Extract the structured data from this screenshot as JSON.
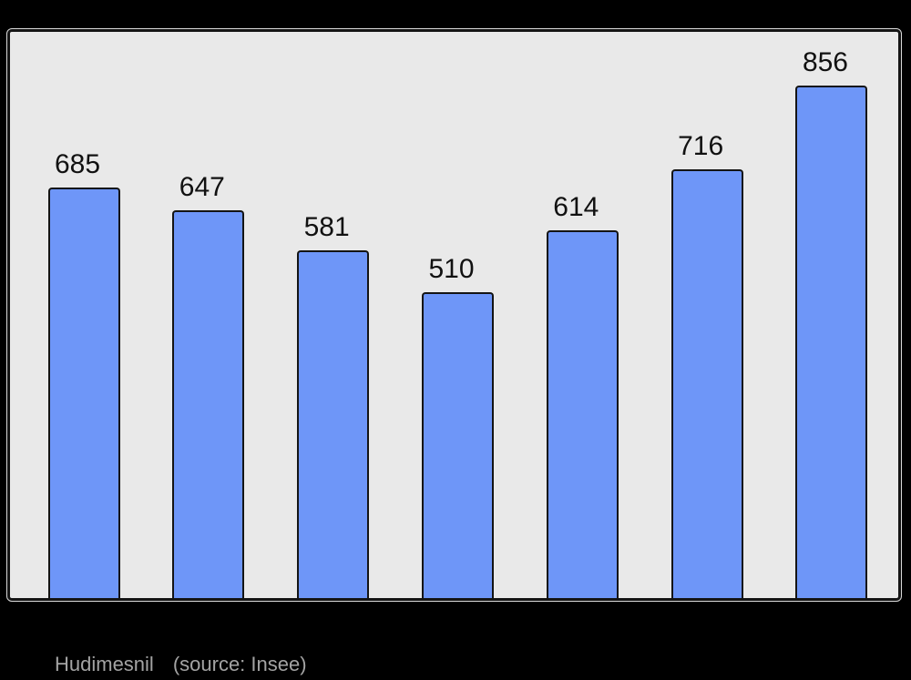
{
  "chart_data": {
    "type": "bar",
    "title": "Hudimesnil",
    "source_note": "(source: Insee)",
    "values": [
      685,
      647,
      581,
      510,
      614,
      716,
      856
    ],
    "data_labels": [
      "685",
      "647",
      "581",
      "510",
      "614",
      "716",
      "856"
    ],
    "xlabel": "",
    "ylabel": "",
    "ylim": [
      0,
      945
    ],
    "grid": false,
    "legend": false,
    "axis_tick_labels_visible": false
  },
  "colors": {
    "page_bg": "#000000",
    "plot_bg": "#e9e9e9",
    "plot_border": "#141414",
    "plot_outline": "#d9d9d9",
    "bar_fill": "#6e96f8",
    "bar_border": "#141414",
    "value_label": "#111111",
    "caption_text": "#a3a3a3"
  }
}
